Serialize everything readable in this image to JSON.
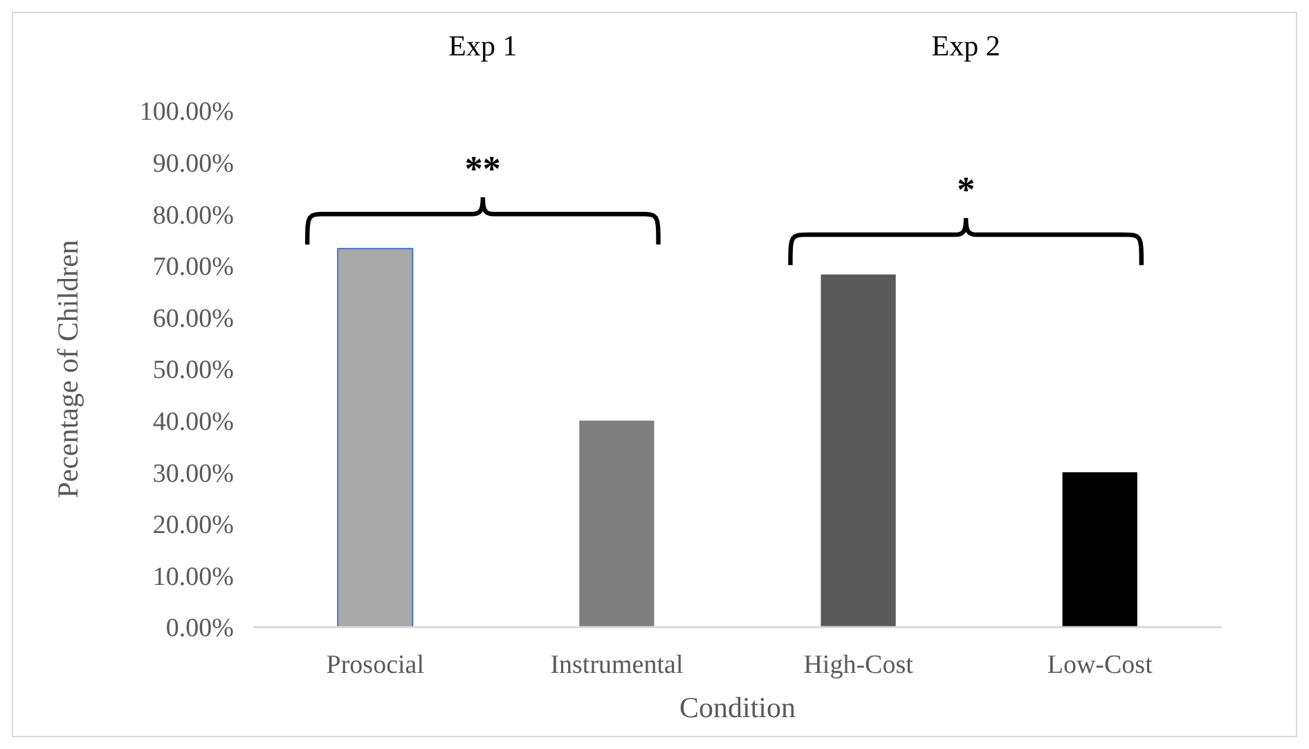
{
  "chart_data": {
    "type": "bar",
    "xlabel": "Condition",
    "ylabel": "Pecentage of Children",
    "categories": [
      "Prosocial",
      "Instrumental",
      "High-Cost",
      "Low-Cost"
    ],
    "values": [
      73.3,
      40,
      68.3,
      30
    ],
    "colors": [
      "#a9a9a9",
      "#7f7f7f",
      "#595959",
      "#000000"
    ],
    "ylim": [
      0,
      100
    ],
    "yticks": [
      {
        "value": 0,
        "label": "0.00%"
      },
      {
        "value": 10,
        "label": "10.00%"
      },
      {
        "value": 20,
        "label": "20.00%"
      },
      {
        "value": 30,
        "label": "30.00%"
      },
      {
        "value": 40,
        "label": "40.00%"
      },
      {
        "value": 50,
        "label": "50.00%"
      },
      {
        "value": 60,
        "label": "60.00%"
      },
      {
        "value": 70,
        "label": "70.00%"
      },
      {
        "value": 80,
        "label": "80.00%"
      },
      {
        "value": 90,
        "label": "90.00%"
      },
      {
        "value": 100,
        "label": "100.00%"
      }
    ],
    "grid": false,
    "annotations": [
      "Exp 1",
      "Exp 2",
      "**",
      "*"
    ]
  }
}
